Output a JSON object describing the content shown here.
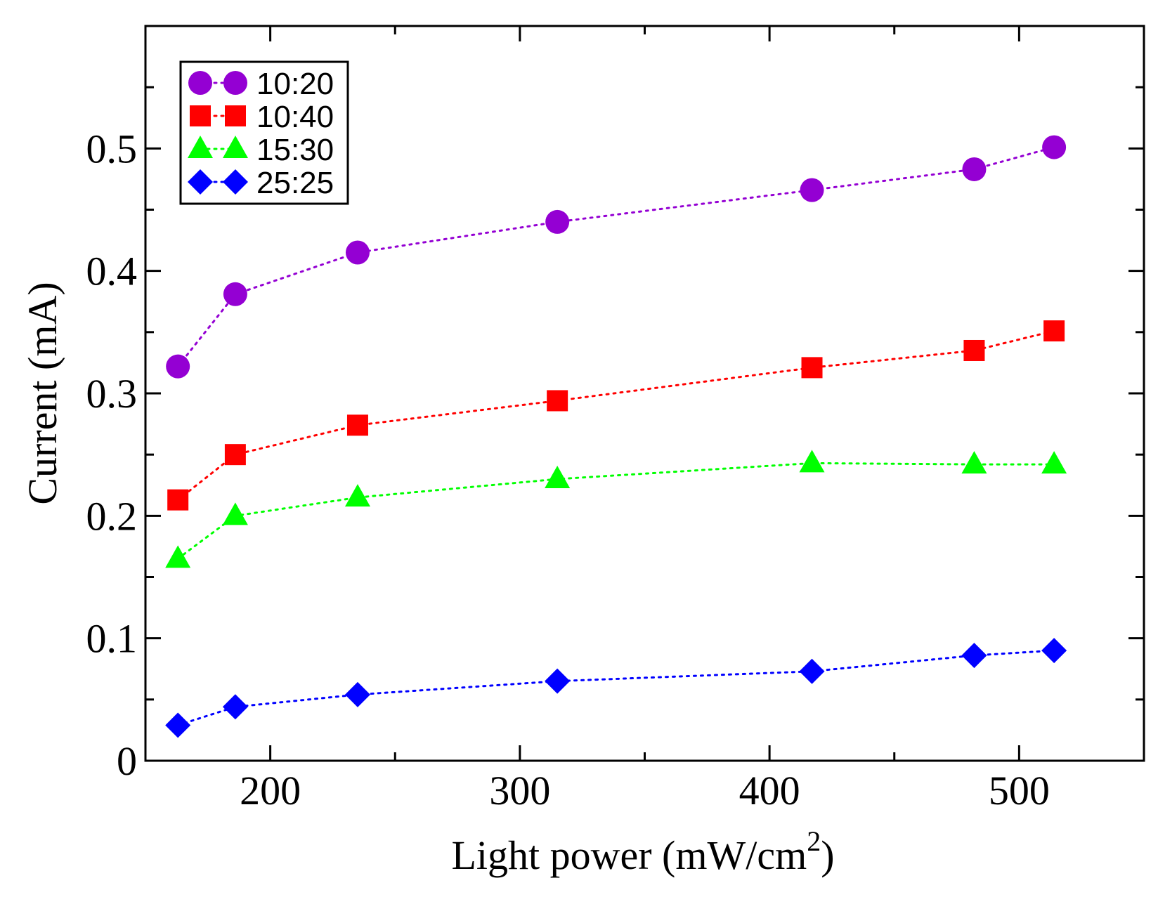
{
  "chart_data": {
    "type": "line",
    "xlabel": "Light power (mW/cm",
    "xlabel_sup": "2",
    "xlabel_tail": ")",
    "ylabel": "Current (mA)",
    "xlim": [
      150,
      550
    ],
    "ylim": [
      0,
      0.6
    ],
    "x_ticks": [
      200,
      300,
      400,
      500
    ],
    "x_minor_ticks": [
      250,
      350,
      450
    ],
    "y_ticks": [
      0,
      0.1,
      0.2,
      0.3,
      0.4,
      0.5
    ],
    "y_tick_labels": [
      "0",
      "0.1",
      "0.2",
      "0.3",
      "0.4",
      "0.5"
    ],
    "y_minor_ticks": [
      0.05,
      0.15,
      0.25,
      0.35,
      0.45,
      0.55
    ],
    "legend_position": "top-left",
    "grid": false,
    "x": [
      163,
      186,
      235,
      315,
      417,
      482,
      514
    ],
    "series": [
      {
        "name": "10:20",
        "marker": "circle",
        "color": "#9400d3",
        "values": [
          0.322,
          0.381,
          0.415,
          0.44,
          0.466,
          0.483,
          0.501
        ]
      },
      {
        "name": "10:40",
        "marker": "square",
        "color": "#ff0000",
        "values": [
          0.213,
          0.25,
          0.274,
          0.294,
          0.321,
          0.335,
          0.351
        ]
      },
      {
        "name": "15:30",
        "marker": "triangle",
        "color": "#00ff00",
        "values": [
          0.165,
          0.2,
          0.215,
          0.23,
          0.243,
          0.242,
          0.242
        ]
      },
      {
        "name": "25:25",
        "marker": "diamond",
        "color": "#0000ff",
        "values": [
          0.029,
          0.044,
          0.054,
          0.065,
          0.073,
          0.086,
          0.09
        ]
      }
    ]
  }
}
